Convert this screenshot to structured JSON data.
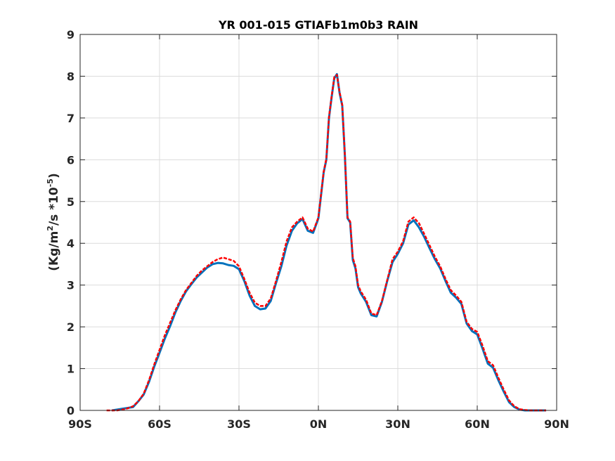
{
  "chart_data": {
    "type": "line",
    "title": "YR 001-015 GTIAFb1m0b3 RAIN",
    "xlabel": "",
    "ylabel": "(Kg/m²/s   *10⁻⁵)",
    "ylabel_parts": {
      "a": "(Kg/m",
      "a_sup": "2",
      "b": "/s   *10",
      "b_sup": "-5",
      "c": ")"
    },
    "xlim": [
      -90,
      90
    ],
    "ylim": [
      0,
      9
    ],
    "grid": true,
    "x_ticks": [
      {
        "value": -90,
        "label": "90S"
      },
      {
        "value": -60,
        "label": "60S"
      },
      {
        "value": -30,
        "label": "30S"
      },
      {
        "value": 0,
        "label": "0N"
      },
      {
        "value": 30,
        "label": "30N"
      },
      {
        "value": 60,
        "label": "60N"
      },
      {
        "value": 90,
        "label": "90N"
      }
    ],
    "y_ticks": [
      {
        "value": 0,
        "label": "0"
      },
      {
        "value": 1,
        "label": "1"
      },
      {
        "value": 2,
        "label": "2"
      },
      {
        "value": 3,
        "label": "3"
      },
      {
        "value": 4,
        "label": "4"
      },
      {
        "value": 5,
        "label": "5"
      },
      {
        "value": 6,
        "label": "6"
      },
      {
        "value": 7,
        "label": "7"
      },
      {
        "value": 8,
        "label": "8"
      },
      {
        "value": 9,
        "label": "9"
      }
    ],
    "series": [
      {
        "color": "#0072bd",
        "style": "solid",
        "x": [
          -78,
          -76,
          -74,
          -72,
          -70,
          -68,
          -66,
          -64,
          -62,
          -60,
          -58,
          -56,
          -54,
          -52,
          -50,
          -48,
          -46,
          -44,
          -42,
          -40,
          -38,
          -36,
          -34,
          -32,
          -30,
          -28,
          -26,
          -24,
          -22,
          -20,
          -18,
          -16,
          -14,
          -12,
          -10,
          -8,
          -6,
          -4,
          -2,
          0,
          2,
          3,
          4,
          5,
          6,
          7,
          8,
          9,
          10,
          11,
          12,
          13,
          14,
          15,
          16,
          18,
          20,
          22,
          24,
          26,
          28,
          30,
          32,
          34,
          36,
          38,
          40,
          42,
          44,
          46,
          48,
          50,
          52,
          54,
          56,
          58,
          60,
          62,
          64,
          66,
          68,
          70,
          72,
          74,
          76,
          78,
          80,
          82,
          84,
          86
        ],
        "y": [
          0.0,
          0.02,
          0.04,
          0.06,
          0.08,
          0.22,
          0.38,
          0.68,
          1.05,
          1.38,
          1.72,
          2.02,
          2.35,
          2.62,
          2.85,
          3.02,
          3.18,
          3.3,
          3.42,
          3.5,
          3.53,
          3.52,
          3.48,
          3.46,
          3.38,
          3.1,
          2.75,
          2.5,
          2.42,
          2.44,
          2.62,
          3.05,
          3.45,
          3.95,
          4.3,
          4.48,
          4.58,
          4.3,
          4.25,
          4.6,
          5.7,
          6.0,
          7.0,
          7.5,
          7.95,
          8.05,
          7.6,
          7.3,
          6.1,
          4.6,
          4.5,
          3.6,
          3.4,
          2.95,
          2.8,
          2.6,
          2.28,
          2.25,
          2.6,
          3.1,
          3.55,
          3.75,
          4.0,
          4.45,
          4.55,
          4.38,
          4.15,
          3.88,
          3.62,
          3.4,
          3.1,
          2.82,
          2.7,
          2.55,
          2.08,
          1.9,
          1.82,
          1.48,
          1.12,
          1.02,
          0.72,
          0.45,
          0.2,
          0.08,
          0.02,
          0.0,
          0.0,
          0.0,
          0.0,
          0.0
        ]
      },
      {
        "color": "#ff0000",
        "style": "dashed",
        "x": [
          -80,
          -78,
          -76,
          -74,
          -72,
          -70,
          -68,
          -66,
          -64,
          -62,
          -60,
          -58,
          -56,
          -54,
          -52,
          -50,
          -48,
          -46,
          -44,
          -42,
          -40,
          -38,
          -36,
          -34,
          -32,
          -30,
          -28,
          -26,
          -24,
          -22,
          -20,
          -18,
          -16,
          -14,
          -12,
          -10,
          -8,
          -6,
          -4,
          -2,
          0,
          2,
          3,
          4,
          5,
          6,
          7,
          8,
          9,
          10,
          11,
          12,
          13,
          14,
          15,
          16,
          18,
          20,
          22,
          24,
          26,
          28,
          30,
          32,
          34,
          36,
          38,
          40,
          42,
          44,
          46,
          48,
          50,
          52,
          54,
          56,
          58,
          60,
          62,
          64,
          66,
          68,
          70,
          72,
          74,
          76,
          78,
          80,
          82,
          84,
          86
        ],
        "y": [
          0.0,
          0.0,
          0.0,
          0.02,
          0.05,
          0.1,
          0.22,
          0.4,
          0.72,
          1.1,
          1.45,
          1.8,
          2.1,
          2.4,
          2.66,
          2.88,
          3.05,
          3.22,
          3.35,
          3.45,
          3.55,
          3.62,
          3.66,
          3.62,
          3.58,
          3.45,
          3.15,
          2.82,
          2.58,
          2.5,
          2.5,
          2.68,
          3.1,
          3.55,
          4.05,
          4.38,
          4.52,
          4.62,
          4.35,
          4.28,
          4.62,
          5.72,
          6.02,
          7.02,
          7.52,
          7.98,
          8.03,
          7.62,
          7.32,
          6.12,
          4.62,
          4.52,
          3.65,
          3.45,
          3.0,
          2.85,
          2.65,
          2.32,
          2.28,
          2.62,
          3.12,
          3.62,
          3.8,
          4.05,
          4.52,
          4.62,
          4.48,
          4.22,
          3.95,
          3.68,
          3.45,
          3.15,
          2.88,
          2.75,
          2.6,
          2.12,
          1.95,
          1.88,
          1.55,
          1.18,
          1.08,
          0.78,
          0.5,
          0.24,
          0.1,
          0.03,
          0.01,
          0.0,
          0.0,
          0.0,
          0.0
        ]
      }
    ]
  }
}
